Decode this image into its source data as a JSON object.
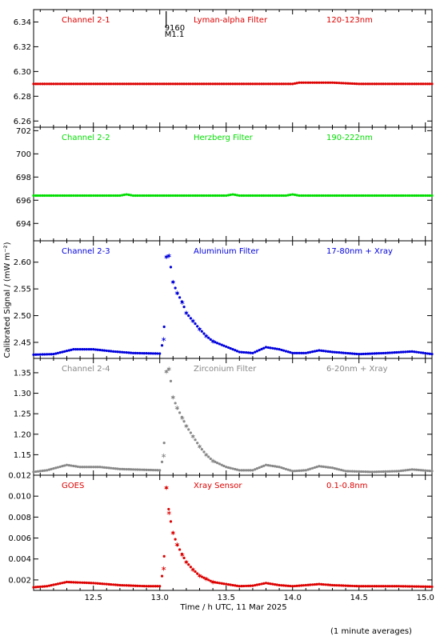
{
  "chart_data": {
    "type": "scatter",
    "xlabel": "Time / h UTC, 11 Mar 2025",
    "ylabel": "Calibrated Signal / (mW m⁻²)",
    "note": "(1 minute averages)",
    "xlim": [
      12.05,
      15.05
    ],
    "xticks": [
      "12.5",
      "13.0",
      "13.5",
      "14.0",
      "14.5",
      "15.0"
    ],
    "flare_marker": {
      "x": 13.0,
      "label_top": "9160",
      "label_bottom": "M1.1"
    },
    "panels": [
      {
        "channel": "Channel 2-1",
        "filter": "Lyman-alpha Filter",
        "band": "120-123nm",
        "color": "#dd0000",
        "ylim": [
          6.255,
          6.35
        ],
        "yticks": [
          "6.26",
          "6.28",
          "6.30",
          "6.32",
          "6.34"
        ],
        "series": [
          [
            12.05,
            6.29
          ],
          [
            13.0,
            6.29
          ],
          [
            14.0,
            6.29
          ],
          [
            14.05,
            6.291
          ],
          [
            14.3,
            6.291
          ],
          [
            14.5,
            6.29
          ],
          [
            15.05,
            6.29
          ]
        ]
      },
      {
        "channel": "Channel 2-2",
        "filter": "Herzberg Filter",
        "band": "190-222nm",
        "color": "#00dd00",
        "ylim": [
          692.5,
          702.3
        ],
        "yticks": [
          "694",
          "696",
          "698",
          "700",
          "702"
        ],
        "series": [
          [
            12.05,
            696.4
          ],
          [
            12.7,
            696.4
          ],
          [
            12.75,
            696.5
          ],
          [
            12.8,
            696.4
          ],
          [
            13.5,
            696.4
          ],
          [
            13.55,
            696.5
          ],
          [
            13.6,
            696.4
          ],
          [
            13.95,
            696.4
          ],
          [
            14.0,
            696.5
          ],
          [
            14.05,
            696.4
          ],
          [
            15.05,
            696.4
          ]
        ]
      },
      {
        "channel": "Channel 2-3",
        "filter": "Aluminium Filter",
        "band": "17-80nm + Xray",
        "color": "#0000dd",
        "ylim": [
          2.42,
          2.64
        ],
        "yticks": [
          "2.45",
          "2.50",
          "2.55",
          "2.60"
        ],
        "series": [
          [
            12.05,
            2.427
          ],
          [
            12.2,
            2.428
          ],
          [
            12.35,
            2.437
          ],
          [
            12.5,
            2.437
          ],
          [
            12.65,
            2.433
          ],
          [
            12.8,
            2.43
          ],
          [
            13.0,
            2.429
          ],
          [
            13.03,
            2.456
          ],
          [
            13.05,
            2.61
          ],
          [
            13.07,
            2.612
          ],
          [
            13.1,
            2.563
          ],
          [
            13.13,
            2.543
          ],
          [
            13.17,
            2.525
          ],
          [
            13.2,
            2.505
          ],
          [
            13.25,
            2.49
          ],
          [
            13.3,
            2.475
          ],
          [
            13.35,
            2.462
          ],
          [
            13.4,
            2.452
          ],
          [
            13.5,
            2.442
          ],
          [
            13.6,
            2.432
          ],
          [
            13.7,
            2.43
          ],
          [
            13.8,
            2.441
          ],
          [
            13.9,
            2.437
          ],
          [
            14.0,
            2.43
          ],
          [
            14.1,
            2.43
          ],
          [
            14.2,
            2.435
          ],
          [
            14.3,
            2.432
          ],
          [
            14.5,
            2.428
          ],
          [
            14.7,
            2.43
          ],
          [
            14.9,
            2.433
          ],
          [
            15.05,
            2.428
          ]
        ]
      },
      {
        "channel": "Channel 2-4",
        "filter": "Zirconium Filter",
        "band": "6-20nm + Xray",
        "color": "#888888",
        "ylim": [
          1.1,
          1.385
        ],
        "yticks": [
          "1.15",
          "1.20",
          "1.25",
          "1.30",
          "1.35"
        ],
        "series": [
          [
            12.05,
            1.108
          ],
          [
            12.15,
            1.112
          ],
          [
            12.3,
            1.125
          ],
          [
            12.4,
            1.12
          ],
          [
            12.55,
            1.12
          ],
          [
            12.7,
            1.115
          ],
          [
            13.0,
            1.112
          ],
          [
            13.03,
            1.148
          ],
          [
            13.05,
            1.353
          ],
          [
            13.07,
            1.36
          ],
          [
            13.1,
            1.29
          ],
          [
            13.13,
            1.265
          ],
          [
            13.17,
            1.24
          ],
          [
            13.2,
            1.22
          ],
          [
            13.25,
            1.195
          ],
          [
            13.3,
            1.17
          ],
          [
            13.35,
            1.15
          ],
          [
            13.4,
            1.135
          ],
          [
            13.5,
            1.12
          ],
          [
            13.6,
            1.112
          ],
          [
            13.7,
            1.112
          ],
          [
            13.8,
            1.125
          ],
          [
            13.9,
            1.12
          ],
          [
            14.0,
            1.11
          ],
          [
            14.1,
            1.112
          ],
          [
            14.2,
            1.122
          ],
          [
            14.3,
            1.118
          ],
          [
            14.4,
            1.11
          ],
          [
            14.6,
            1.108
          ],
          [
            14.8,
            1.11
          ],
          [
            14.9,
            1.114
          ],
          [
            15.05,
            1.11
          ]
        ]
      },
      {
        "channel": "GOES",
        "filter": "Xray Sensor",
        "band": "0.1-0.8nm",
        "color": "#dd0000",
        "ylim": [
          0.001,
          0.012
        ],
        "yticks": [
          "0.002",
          "0.004",
          "0.006",
          "0.008",
          "0.010",
          "0.012"
        ],
        "series": [
          [
            12.05,
            0.0013
          ],
          [
            12.15,
            0.0014
          ],
          [
            12.3,
            0.0018
          ],
          [
            12.5,
            0.0017
          ],
          [
            12.7,
            0.0015
          ],
          [
            12.9,
            0.0014
          ],
          [
            13.0,
            0.0014
          ],
          [
            13.03,
            0.0031
          ],
          [
            13.05,
            0.0108
          ],
          [
            13.07,
            0.0084
          ],
          [
            13.1,
            0.0065
          ],
          [
            13.13,
            0.0054
          ],
          [
            13.17,
            0.0044
          ],
          [
            13.2,
            0.0037
          ],
          [
            13.25,
            0.003
          ],
          [
            13.3,
            0.0024
          ],
          [
            13.35,
            0.0021
          ],
          [
            13.4,
            0.0018
          ],
          [
            13.5,
            0.0016
          ],
          [
            13.6,
            0.0014
          ],
          [
            13.7,
            0.00145
          ],
          [
            13.8,
            0.0017
          ],
          [
            13.9,
            0.0015
          ],
          [
            14.0,
            0.0014
          ],
          [
            14.2,
            0.0016
          ],
          [
            14.3,
            0.0015
          ],
          [
            14.5,
            0.0014
          ],
          [
            14.8,
            0.0014
          ],
          [
            15.05,
            0.00135
          ]
        ]
      }
    ]
  }
}
